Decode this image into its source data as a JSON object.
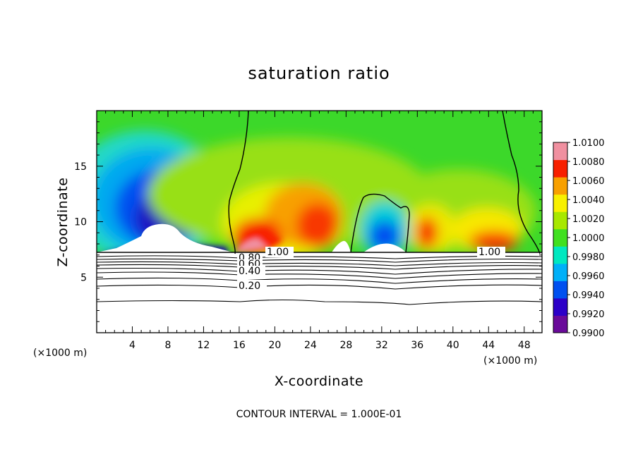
{
  "chart_data": {
    "type": "heatmap",
    "title": "saturation ratio",
    "xlabel": "X-coordinate",
    "ylabel": "Z-coordinate",
    "x_unit_left": "(×1000 m)",
    "x_unit_right": "(×1000 m)",
    "footer": "CONTOUR INTERVAL = 1.000E-01",
    "xlim": [
      0,
      50
    ],
    "ylim": [
      0,
      20
    ],
    "x_ticks": [
      4,
      8,
      12,
      16,
      20,
      24,
      28,
      32,
      36,
      40,
      44,
      48
    ],
    "y_ticks": [
      5,
      10,
      15
    ],
    "x_tick_labels": [
      "4",
      "8",
      "12",
      "16",
      "20",
      "24",
      "28",
      "32",
      "36",
      "40",
      "44",
      "48"
    ],
    "y_tick_labels": [
      "5",
      "10",
      "15"
    ],
    "colorbar": {
      "min": 0.99,
      "max": 1.01,
      "labels": [
        "1.0100",
        "1.0080",
        "1.0060",
        "1.0040",
        "1.0020",
        "1.0000",
        "0.9980",
        "0.9960",
        "0.9940",
        "0.9920",
        "0.9900"
      ],
      "colors": [
        "#6a0a9a",
        "#2c00c8",
        "#0050f0",
        "#00b0f8",
        "#00e8c0",
        "#40e020",
        "#a8e800",
        "#f8f000",
        "#f8a000",
        "#f82000",
        "#f090a0"
      ]
    },
    "contour_labels": [
      "1.00",
      "0.80",
      "0.60",
      "0.40",
      "0.20",
      "1.00"
    ],
    "contour_levels": [
      0.2,
      0.3,
      0.4,
      0.5,
      0.6,
      0.7,
      0.8,
      0.9,
      1.0
    ],
    "features": [
      {
        "kind": "subsaturated",
        "x": 7.5,
        "z": 10.5,
        "value": 0.991
      },
      {
        "kind": "supersaturated",
        "x": 18,
        "z": 9,
        "value": 1.007
      },
      {
        "kind": "supersaturated",
        "x": 25,
        "z": 10,
        "value": 1.006
      },
      {
        "kind": "subsaturated",
        "x": 31.5,
        "z": 9,
        "value": 0.9945
      },
      {
        "kind": "supersaturated",
        "x": 37,
        "z": 9,
        "value": 1.006
      },
      {
        "kind": "supersaturated",
        "x": 43,
        "z": 8.5,
        "value": 1.004
      }
    ]
  }
}
